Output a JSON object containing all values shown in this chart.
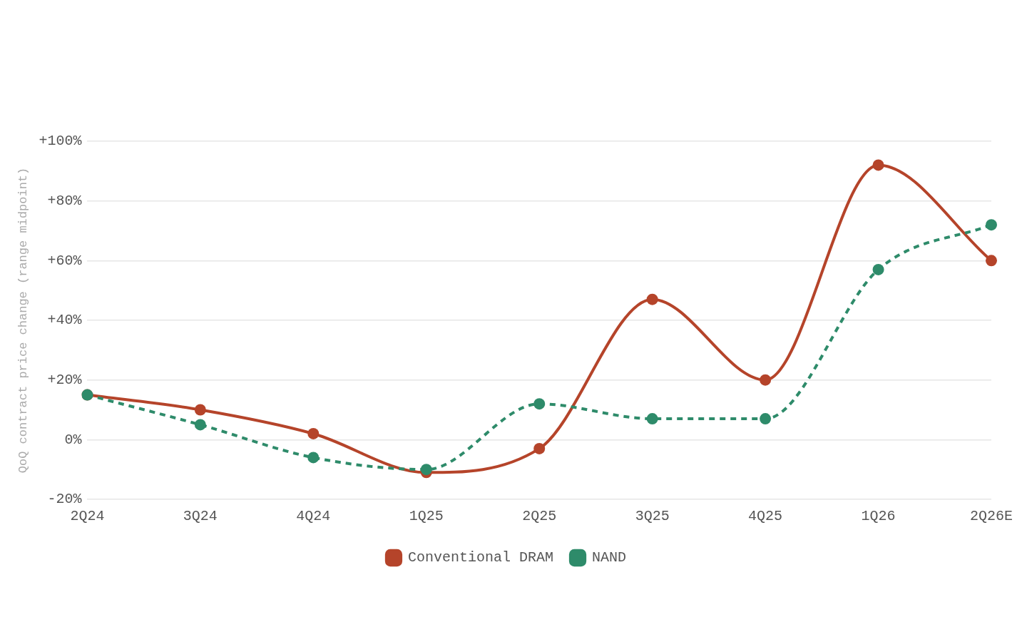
{
  "chart_data": {
    "type": "line",
    "ylabel": "QoQ contract price change (range midpoint)",
    "categories": [
      "2Q24",
      "3Q24",
      "4Q24",
      "1Q25",
      "2Q25",
      "3Q25",
      "4Q25",
      "1Q26",
      "2Q26E"
    ],
    "series": [
      {
        "name": "Conventional DRAM",
        "color": "#b5442a",
        "line_style": "solid",
        "values": [
          15,
          10,
          2,
          -11,
          -3,
          47,
          20,
          92,
          60
        ]
      },
      {
        "name": "NAND",
        "color": "#2e8b6a",
        "line_style": "dashed",
        "values": [
          15,
          5,
          -6,
          -10,
          12,
          7,
          7,
          57,
          72
        ]
      }
    ],
    "ylim": [
      -20,
      100
    ],
    "yticks": [
      {
        "value": -20,
        "label": "-20%"
      },
      {
        "value": 0,
        "label": "0%"
      },
      {
        "value": 20,
        "label": "+20%"
      },
      {
        "value": 40,
        "label": "+40%"
      },
      {
        "value": 60,
        "label": "+60%"
      },
      {
        "value": 80,
        "label": "+80%"
      },
      {
        "value": 100,
        "label": "+100%"
      }
    ],
    "grid": "y",
    "legend": "bottom",
    "marker": "circle"
  }
}
